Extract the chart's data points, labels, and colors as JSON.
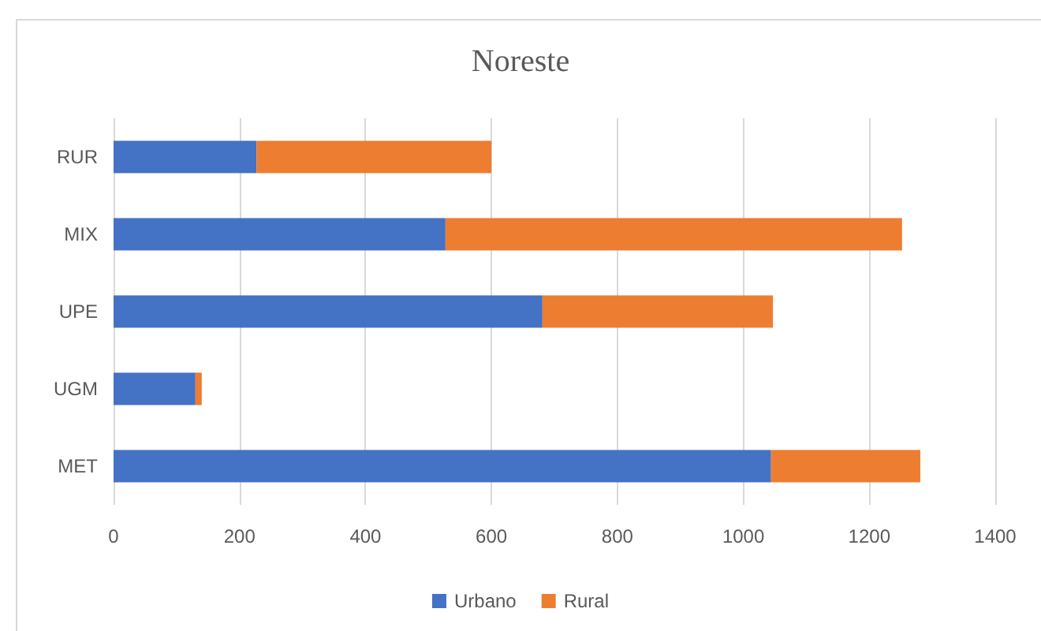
{
  "chart_data": {
    "type": "bar",
    "orientation": "horizontal",
    "stacked": true,
    "title": "Noreste",
    "categories": [
      "RUR",
      "MIX",
      "UPE",
      "UGM",
      "MET"
    ],
    "series": [
      {
        "name": "Urbano",
        "color": "#4472c4",
        "values": [
          227,
          527,
          681,
          130,
          1044
        ]
      },
      {
        "name": "Rural",
        "color": "#ed7d31",
        "values": [
          373,
          725,
          366,
          10,
          237
        ]
      }
    ],
    "xlim": [
      0,
      1400
    ],
    "xticks": [
      0,
      200,
      400,
      600,
      800,
      1000,
      1200,
      1400
    ],
    "grid": "x",
    "legend": "bottom"
  }
}
